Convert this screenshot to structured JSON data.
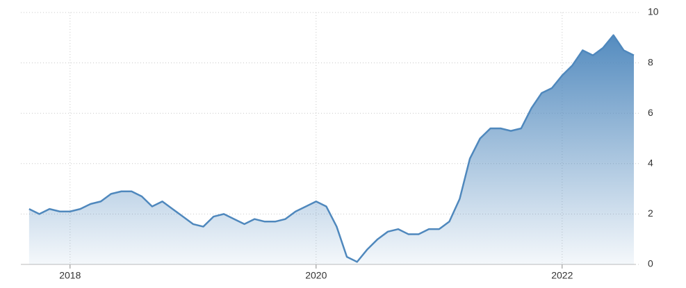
{
  "chart_data": {
    "type": "area",
    "x": [
      2017.667,
      2017.75,
      2017.833,
      2017.917,
      2018,
      2018.083,
      2018.167,
      2018.25,
      2018.333,
      2018.417,
      2018.5,
      2018.583,
      2018.667,
      2018.75,
      2018.833,
      2018.917,
      2019,
      2019.083,
      2019.167,
      2019.25,
      2019.333,
      2019.417,
      2019.5,
      2019.583,
      2019.667,
      2019.75,
      2019.833,
      2019.917,
      2020,
      2020.083,
      2020.167,
      2020.25,
      2020.333,
      2020.417,
      2020.5,
      2020.583,
      2020.667,
      2020.75,
      2020.833,
      2020.917,
      2021,
      2021.083,
      2021.167,
      2021.25,
      2021.333,
      2021.417,
      2021.5,
      2021.583,
      2021.667,
      2021.75,
      2021.833,
      2021.917,
      2022,
      2022.083,
      2022.167,
      2022.25,
      2022.333,
      2022.417,
      2022.5,
      2022.583
    ],
    "series": [
      {
        "color": "#4f88bd",
        "values": [
          2.2,
          2.0,
          2.2,
          2.1,
          2.1,
          2.2,
          2.4,
          2.5,
          2.8,
          2.9,
          2.9,
          2.7,
          2.3,
          2.5,
          2.2,
          1.9,
          1.6,
          1.5,
          1.9,
          2.0,
          1.8,
          1.6,
          1.8,
          1.7,
          1.7,
          1.8,
          2.1,
          2.3,
          2.5,
          2.3,
          1.5,
          0.3,
          0.1,
          0.6,
          1.0,
          1.3,
          1.4,
          1.2,
          1.2,
          1.4,
          1.4,
          1.7,
          2.6,
          4.2,
          5.0,
          5.4,
          5.4,
          5.3,
          5.4,
          6.2,
          6.8,
          7.0,
          7.5,
          7.9,
          8.5,
          8.3,
          8.6,
          9.1,
          8.5,
          8.3
        ]
      }
    ],
    "xlim": [
      2017.6,
      2022.6
    ],
    "xticks": [
      2018,
      2020,
      2022
    ],
    "ylim": [
      0,
      10
    ],
    "yticks": [
      0,
      2,
      4,
      6,
      8,
      10
    ],
    "grid": true
  }
}
